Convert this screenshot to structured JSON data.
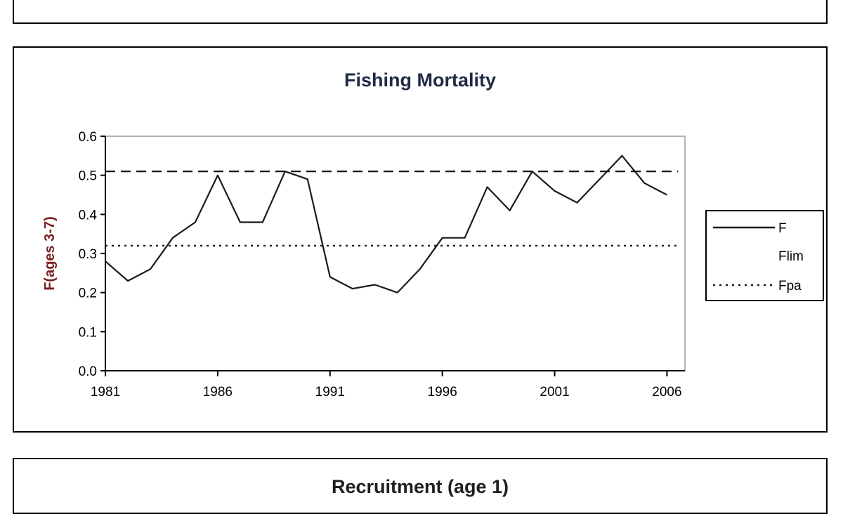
{
  "top_panel": {},
  "bottom_panel": {
    "title": "Recruitment (age 1)"
  },
  "chart_data": {
    "type": "line",
    "title": "Fishing Mortality",
    "xlabel": "",
    "ylabel": "F(ages 3-7)",
    "xlim": [
      1981,
      2006.8
    ],
    "ylim": [
      0.0,
      0.6
    ],
    "x_ticks": [
      1981,
      1986,
      1991,
      1996,
      2001,
      2006
    ],
    "y_ticks": [
      "0.0",
      "0.1",
      "0.2",
      "0.3",
      "0.4",
      "0.5",
      "0.6"
    ],
    "grid": false,
    "legend": "right",
    "series": [
      {
        "name": "F",
        "style": "solid",
        "x": [
          1981,
          1982,
          1983,
          1984,
          1985,
          1986,
          1987,
          1988,
          1989,
          1990,
          1991,
          1992,
          1993,
          1994,
          1995,
          1996,
          1997,
          1998,
          1999,
          2000,
          2001,
          2002,
          2003,
          2004,
          2005,
          2006
        ],
        "y": [
          0.28,
          0.23,
          0.26,
          0.34,
          0.38,
          0.5,
          0.38,
          0.38,
          0.51,
          0.49,
          0.24,
          0.21,
          0.22,
          0.2,
          0.26,
          0.34,
          0.34,
          0.47,
          0.41,
          0.51,
          0.46,
          0.43,
          0.49,
          0.55,
          0.48,
          0.45
        ]
      },
      {
        "name": "Flim",
        "style": "dashed",
        "x": [
          1981,
          2006.5
        ],
        "y": [
          0.51,
          0.51
        ]
      },
      {
        "name": "Fpa",
        "style": "dotted",
        "x": [
          1981,
          2006.5
        ],
        "y": [
          0.32,
          0.32
        ]
      }
    ]
  },
  "colors": {
    "axis": "#000000",
    "ylabel": "#7a1f1f",
    "title": "#1f2a44",
    "line": "#1a1a1a",
    "plot_border": "#9a9a9a"
  }
}
